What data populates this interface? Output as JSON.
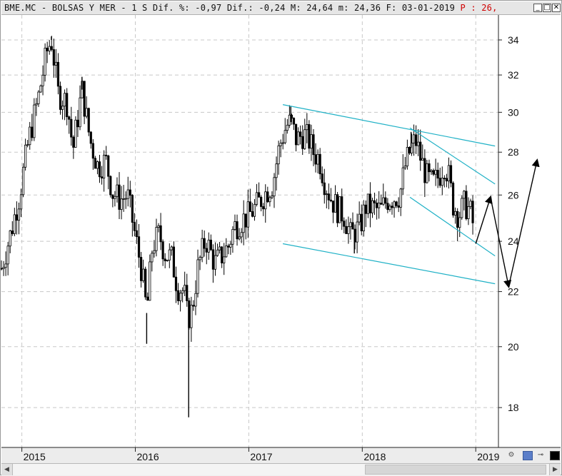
{
  "window": {
    "title": "BME.MC - BOLSAS Y MER -  1 S Dif. %: -0,97 Dif.: -0,24 M: 24,64 m: 24,36 F: 03-01-2019",
    "title_extra": "P : 26,",
    "buttons": {
      "minimize": "_",
      "restore": "□",
      "close": "✕"
    }
  },
  "chart_data": {
    "type": "candlestick",
    "ticker": "BME.MC",
    "period": "1 S",
    "y_scale": "log",
    "ylim": [
      16.8,
      35.5
    ],
    "yticks": [
      18,
      20,
      22,
      24,
      26,
      28,
      30,
      32,
      34
    ],
    "xlim": [
      2014.82,
      2019.2
    ],
    "xticks": [
      {
        "value": 2015,
        "label": "2015"
      },
      {
        "value": 2016,
        "label": "2016"
      },
      {
        "value": 2017,
        "label": "2017"
      },
      {
        "value": 2018,
        "label": "2018"
      },
      {
        "value": 2019,
        "label": "2019"
      }
    ],
    "grid": true,
    "price_path": [
      [
        2014.82,
        22.9
      ],
      [
        2014.9,
        24.3
      ],
      [
        2014.98,
        26.0
      ],
      [
        2015.06,
        28.6
      ],
      [
        2015.14,
        30.6
      ],
      [
        2015.22,
        33.3
      ],
      [
        2015.26,
        34.0
      ],
      [
        2015.32,
        31.0
      ],
      [
        2015.4,
        30.5
      ],
      [
        2015.45,
        28.1
      ],
      [
        2015.53,
        31.2
      ],
      [
        2015.6,
        28.6
      ],
      [
        2015.67,
        27.3
      ],
      [
        2015.74,
        27.6
      ],
      [
        2015.8,
        26.1
      ],
      [
        2015.87,
        25.8
      ],
      [
        2015.93,
        26.0
      ],
      [
        2016.0,
        24.2
      ],
      [
        2016.06,
        22.7
      ],
      [
        2016.1,
        21.2
      ],
      [
        2016.15,
        23.8
      ],
      [
        2016.21,
        24.3
      ],
      [
        2016.26,
        23.5
      ],
      [
        2016.32,
        23.3
      ],
      [
        2016.37,
        22.2
      ],
      [
        2016.43,
        22.0
      ],
      [
        2016.46,
        21.0
      ],
      [
        2016.5,
        21.3
      ],
      [
        2016.55,
        22.9
      ],
      [
        2016.62,
        24.1
      ],
      [
        2016.7,
        23.1
      ],
      [
        2016.76,
        23.4
      ],
      [
        2016.82,
        23.8
      ],
      [
        2016.87,
        24.6
      ],
      [
        2016.94,
        24.9
      ],
      [
        2017.0,
        25.1
      ],
      [
        2017.08,
        25.6
      ],
      [
        2017.16,
        26.2
      ],
      [
        2017.21,
        26.5
      ],
      [
        2017.27,
        28.3
      ],
      [
        2017.33,
        29.3
      ],
      [
        2017.37,
        29.5
      ],
      [
        2017.42,
        28.6
      ],
      [
        2017.48,
        28.9
      ],
      [
        2017.53,
        28.6
      ],
      [
        2017.57,
        28.0
      ],
      [
        2017.62,
        27.7
      ],
      [
        2017.67,
        26.6
      ],
      [
        2017.72,
        25.9
      ],
      [
        2017.78,
        25.4
      ],
      [
        2017.84,
        25.1
      ],
      [
        2017.9,
        24.2
      ],
      [
        2017.93,
        24.4
      ],
      [
        2017.98,
        24.6
      ],
      [
        2018.03,
        25.5
      ],
      [
        2018.1,
        25.4
      ],
      [
        2018.16,
        25.3
      ],
      [
        2018.22,
        25.8
      ],
      [
        2018.28,
        25.9
      ],
      [
        2018.33,
        26.0
      ],
      [
        2018.38,
        27.4
      ],
      [
        2018.43,
        28.2
      ],
      [
        2018.47,
        28.6
      ],
      [
        2018.52,
        27.6
      ],
      [
        2018.57,
        26.8
      ],
      [
        2018.62,
        26.5
      ],
      [
        2018.68,
        26.9
      ],
      [
        2018.72,
        27.5
      ],
      [
        2018.76,
        26.9
      ],
      [
        2018.8,
        25.6
      ],
      [
        2018.85,
        25.1
      ],
      [
        2018.9,
        25.6
      ],
      [
        2018.95,
        25.3
      ],
      [
        2018.99,
        24.4
      ]
    ],
    "spikes": [
      {
        "x": 2015.26,
        "high": 34.2
      },
      {
        "x": 2015.53,
        "high": 31.9
      },
      {
        "x": 2016.1,
        "low": 20.1
      },
      {
        "x": 2016.47,
        "low": 17.7
      },
      {
        "x": 2017.37,
        "high": 30.3
      },
      {
        "x": 2017.93,
        "low": 23.5
      },
      {
        "x": 2018.43,
        "high": 29.0
      }
    ],
    "trendlines": [
      {
        "from": [
          2017.3,
          30.4
        ],
        "to": [
          2019.17,
          28.3
        ],
        "color": "#1fb1c6"
      },
      {
        "from": [
          2017.3,
          23.9
        ],
        "to": [
          2019.17,
          22.3
        ],
        "color": "#1fb1c6"
      },
      {
        "from": [
          2018.42,
          29.2
        ],
        "to": [
          2019.17,
          26.5
        ],
        "color": "#1fb1c6"
      },
      {
        "from": [
          2018.42,
          25.9
        ],
        "to": [
          2019.17,
          23.4
        ],
        "color": "#1fb1c6"
      }
    ],
    "projection_arrows": [
      [
        [
          2019.0,
          23.9
        ],
        [
          2019.13,
          25.9
        ]
      ],
      [
        [
          2019.13,
          25.9
        ],
        [
          2019.29,
          22.2
        ]
      ],
      [
        [
          2019.29,
          22.2
        ],
        [
          2019.54,
          27.6
        ]
      ]
    ],
    "colors": {
      "candle": "#000000",
      "grid": "#c8c8c8",
      "trendline": "#1fb1c6",
      "arrow": "#000000"
    }
  },
  "toolbar": {
    "icons": [
      "settings-icon",
      "save-icon",
      "pin-icon",
      "color-box-icon"
    ]
  }
}
